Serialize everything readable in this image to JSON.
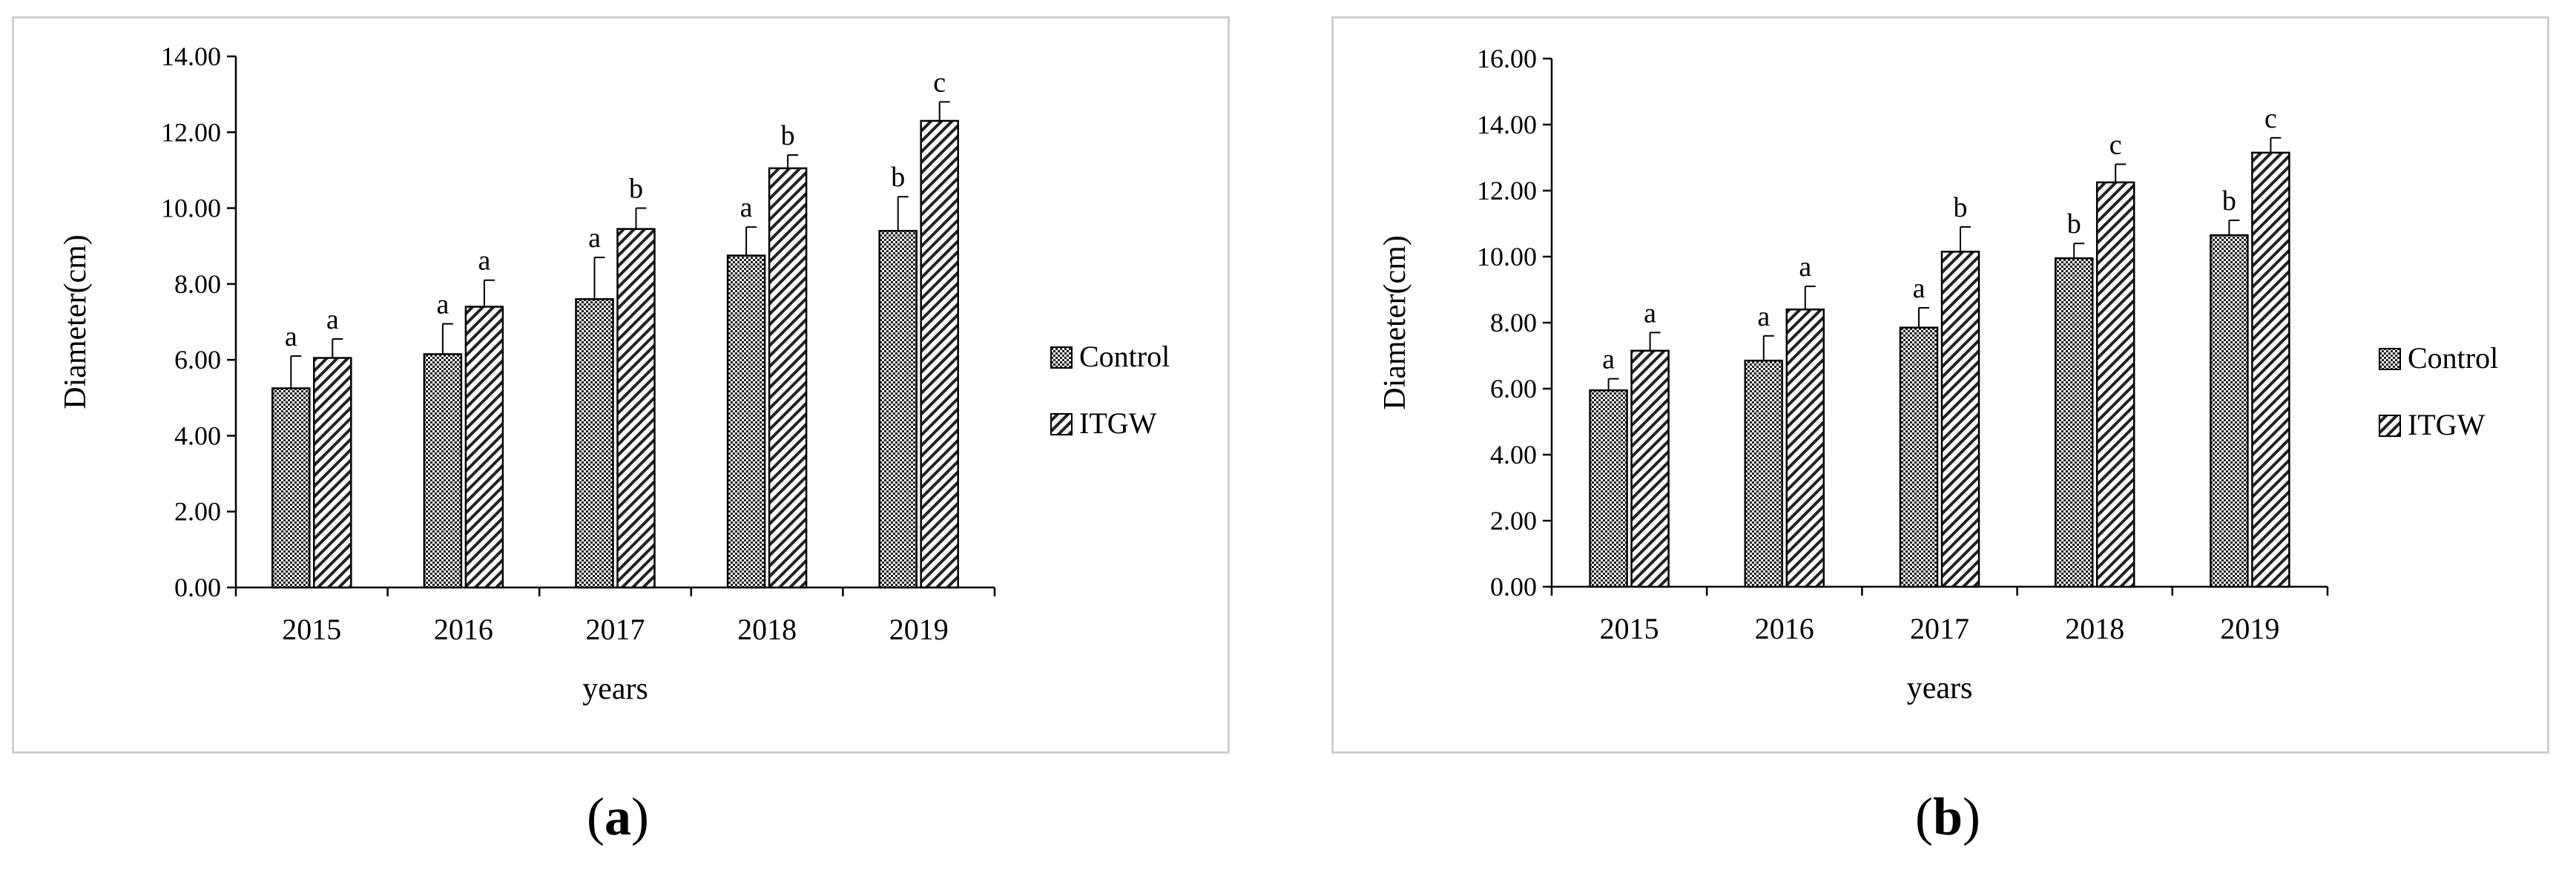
{
  "chart_data": [
    {
      "type": "bar",
      "panel_label": "a",
      "ylabel": "Diameter(cm)",
      "xlabel": "years",
      "ylim": [
        0,
        14
      ],
      "ytick_step": 2,
      "ytick_labels": [
        "0.00",
        "2.00",
        "4.00",
        "6.00",
        "8.00",
        "10.00",
        "12.00",
        "14.00"
      ],
      "categories": [
        "2015",
        "2016",
        "2017",
        "2018",
        "2019"
      ],
      "series": [
        {
          "name": "Control",
          "pattern": "dots",
          "values": [
            5.25,
            6.15,
            7.6,
            8.75,
            9.4
          ],
          "errors": [
            0.85,
            0.8,
            1.1,
            0.75,
            0.9
          ],
          "letters": [
            "a",
            "a",
            "a",
            "a",
            "b"
          ]
        },
        {
          "name": "ITGW",
          "pattern": "hatch",
          "values": [
            6.05,
            7.4,
            9.45,
            11.05,
            12.3
          ],
          "errors": [
            0.5,
            0.7,
            0.55,
            0.35,
            0.5
          ],
          "letters": [
            "a",
            "a",
            "b",
            "b",
            "c"
          ]
        }
      ],
      "legend": "right"
    },
    {
      "type": "bar",
      "panel_label": "b",
      "ylabel": "Diameter(cm)",
      "xlabel": "years",
      "ylim": [
        0,
        16
      ],
      "ytick_step": 2,
      "ytick_labels": [
        "0.00",
        "2.00",
        "4.00",
        "6.00",
        "8.00",
        "10.00",
        "12.00",
        "14.00",
        "16.00"
      ],
      "categories": [
        "2015",
        "2016",
        "2017",
        "2018",
        "2019"
      ],
      "series": [
        {
          "name": "Control",
          "pattern": "dots",
          "values": [
            5.95,
            6.85,
            7.85,
            9.95,
            10.65
          ],
          "errors": [
            0.35,
            0.75,
            0.6,
            0.45,
            0.45
          ],
          "letters": [
            "a",
            "a",
            "a",
            "b",
            "b"
          ]
        },
        {
          "name": "ITGW",
          "pattern": "hatch",
          "values": [
            7.15,
            8.4,
            10.15,
            12.25,
            13.15
          ],
          "errors": [
            0.55,
            0.7,
            0.75,
            0.55,
            0.45
          ],
          "letters": [
            "a",
            "a",
            "b",
            "c",
            "c"
          ]
        }
      ],
      "legend": "right"
    }
  ],
  "captions": {
    "a": "(a)",
    "b": "(b)"
  }
}
